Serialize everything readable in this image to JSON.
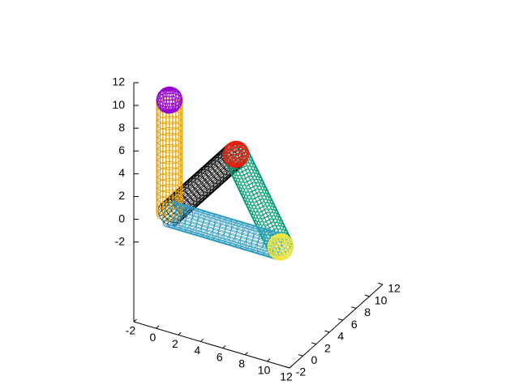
{
  "chart_data": {
    "type": "surface3d",
    "xlim": [
      -2,
      12
    ],
    "ylim": [
      -2,
      12
    ],
    "zlim": [
      -2,
      12
    ],
    "xticks": [
      -2,
      0,
      2,
      4,
      6,
      8,
      10,
      12
    ],
    "yticks": [
      -2,
      0,
      2,
      4,
      6,
      8,
      10,
      12
    ],
    "zticks": [
      -2,
      0,
      2,
      4,
      6,
      8,
      10,
      12
    ],
    "ticslevel": 0.5,
    "radius": 1,
    "tubes": [
      {
        "color": "#000000",
        "from": [
          0,
          0,
          0
        ],
        "to": [
          0,
          10,
          0
        ]
      },
      {
        "color": "#009e73",
        "from": [
          0,
          10,
          0
        ],
        "to": [
          10,
          0,
          0
        ]
      },
      {
        "color": "#e69f00",
        "from": [
          0,
          0,
          0
        ],
        "to": [
          0,
          0,
          10
        ]
      },
      {
        "color": "#2f9cc4",
        "from": [
          0,
          0,
          0
        ],
        "to": [
          10,
          0,
          0
        ]
      }
    ],
    "caps": [
      {
        "color": "#e51e10",
        "center": [
          0,
          10,
          0
        ]
      },
      {
        "color": "#9400d3",
        "center": [
          0,
          0,
          10
        ]
      },
      {
        "color": "#f0e442",
        "center": [
          10,
          0,
          0
        ]
      }
    ]
  }
}
